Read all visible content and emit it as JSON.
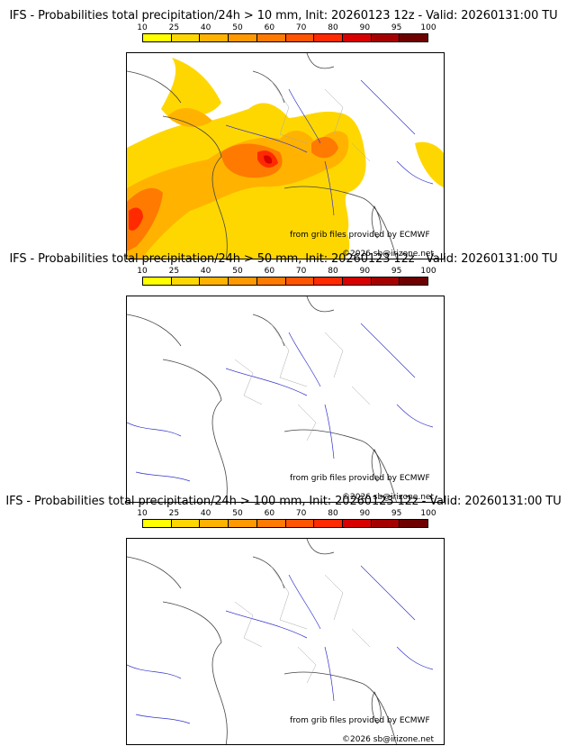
{
  "legend": {
    "ticks": [
      "10",
      "25",
      "40",
      "50",
      "60",
      "70",
      "80",
      "90",
      "95",
      "100"
    ],
    "colors": [
      "#ffff00",
      "#ffd700",
      "#ffb300",
      "#ff9900",
      "#ff7a00",
      "#ff5500",
      "#ff2a00",
      "#d80000",
      "#a50000",
      "#6e0000"
    ]
  },
  "panels": [
    {
      "title": "IFS - Probabilities total precipitation/24h > 10 mm, Init: 20260123 12z - Valid: 20260131:00 TU",
      "credit1": "from grib files provided by ECMWF",
      "credit2": "©2026 sb@irizone.net"
    },
    {
      "title": "IFS - Probabilities total precipitation/24h > 50 mm, Init: 20260123 12z - Valid: 20260131:00 TU",
      "credit1": "from grib files provided by ECMWF",
      "credit2": "©2026 sb@irizone.net"
    },
    {
      "title": "IFS - Probabilities total precipitation/24h > 100 mm, Init: 20260123 12z - Valid: 20260131:00 TU",
      "credit1": "from grib files provided by ECMWF",
      "credit2": "©2026 sb@irizone.net"
    }
  ]
}
